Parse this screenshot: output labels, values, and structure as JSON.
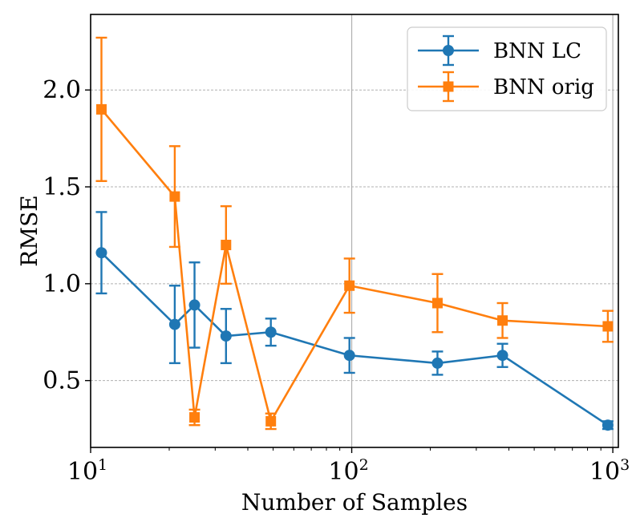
{
  "chart_data": {
    "type": "line",
    "xscale": "log",
    "xlim": [
      10,
      1050
    ],
    "ylim": [
      0.155,
      2.39
    ],
    "xlabel": "Number of Samples",
    "ylabel": "RMSE",
    "yticks": [
      "0.5",
      "1.0",
      "1.5",
      "2.0"
    ],
    "ytick_values": [
      0.5,
      1.0,
      1.5,
      2.0
    ],
    "xticks": [
      {
        "base": "10",
        "exp": "1",
        "value": 10
      },
      {
        "base": "10",
        "exp": "2",
        "value": 100
      },
      {
        "base": "10",
        "exp": "3",
        "value": 1000
      }
    ],
    "grid": "y major dashed, x major solid",
    "legend_position": "top-right",
    "series": [
      {
        "name": "BNN LC",
        "color": "#1f77b4",
        "marker": "circle",
        "x": [
          11,
          21,
          25,
          33,
          49,
          98,
          213,
          378,
          957
        ],
        "y": [
          1.16,
          0.79,
          0.89,
          0.73,
          0.75,
          0.63,
          0.59,
          0.63,
          0.27
        ],
        "yerr": [
          0.21,
          0.2,
          0.22,
          0.14,
          0.07,
          0.09,
          0.06,
          0.06,
          0.02
        ]
      },
      {
        "name": "BNN orig",
        "color": "#ff7f0e",
        "marker": "square",
        "x": [
          11,
          21,
          25,
          33,
          49,
          98,
          213,
          378,
          957
        ],
        "y": [
          1.9,
          1.45,
          0.31,
          1.2,
          0.29,
          0.99,
          0.9,
          0.81,
          0.78
        ],
        "yerr": [
          0.37,
          0.26,
          0.04,
          0.2,
          0.04,
          0.14,
          0.15,
          0.09,
          0.08
        ]
      }
    ]
  }
}
